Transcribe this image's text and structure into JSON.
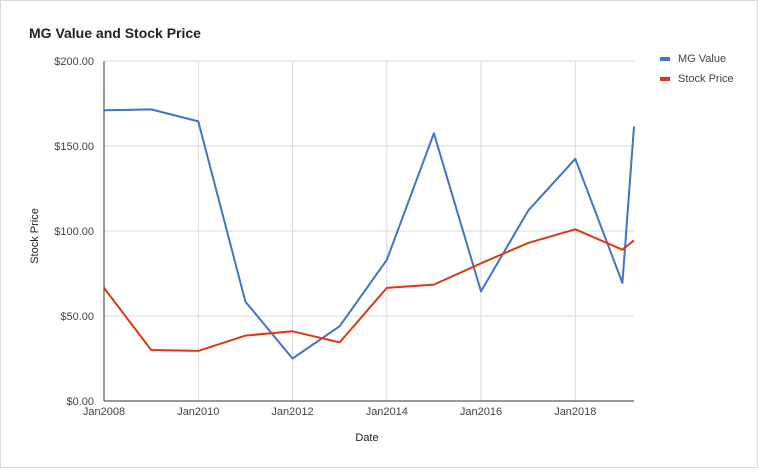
{
  "chart_data": {
    "type": "line",
    "title": "MG Value and Stock Price",
    "xlabel": "Date",
    "ylabel": "Stock Price",
    "ylim": [
      0,
      200
    ],
    "y_ticks": [
      {
        "value": 0,
        "label": "$0.00"
      },
      {
        "value": 50,
        "label": "$50.00"
      },
      {
        "value": 100,
        "label": "$100.00"
      },
      {
        "value": 150,
        "label": "$150.00"
      },
      {
        "value": 200,
        "label": "$200.00"
      }
    ],
    "xlim": [
      "2008-01-01",
      "2019-04-01"
    ],
    "x_ticks": [
      {
        "date": "2008-01-01",
        "label": "Jan2008"
      },
      {
        "date": "2010-01-01",
        "label": "Jan2010"
      },
      {
        "date": "2012-01-01",
        "label": "Jan2012"
      },
      {
        "date": "2014-01-01",
        "label": "Jan2014"
      },
      {
        "date": "2016-01-01",
        "label": "Jan2016"
      },
      {
        "date": "2018-01-01",
        "label": "Jan2018"
      }
    ],
    "grid": true,
    "legend_position": "right",
    "series": [
      {
        "name": "MG Value",
        "color": "#4472c4",
        "points": [
          {
            "x": "2008-01-01",
            "y": 171
          },
          {
            "x": "2009-01-01",
            "y": 171.5
          },
          {
            "x": "2010-01-01",
            "y": 164.5
          },
          {
            "x": "2011-01-01",
            "y": 58.5
          },
          {
            "x": "2012-01-01",
            "y": 25
          },
          {
            "x": "2013-01-01",
            "y": 44
          },
          {
            "x": "2014-01-01",
            "y": 83
          },
          {
            "x": "2015-01-01",
            "y": 157.5
          },
          {
            "x": "2016-01-01",
            "y": 64.5
          },
          {
            "x": "2017-01-01",
            "y": 112
          },
          {
            "x": "2018-01-01",
            "y": 142.5
          },
          {
            "x": "2019-01-01",
            "y": 69.5
          },
          {
            "x": "2019-04-01",
            "y": 161.5
          }
        ]
      },
      {
        "name": "Stock Price",
        "color": "#dc3912",
        "points": [
          {
            "x": "2008-01-01",
            "y": 66.5
          },
          {
            "x": "2009-01-01",
            "y": 30
          },
          {
            "x": "2010-01-01",
            "y": 29.5
          },
          {
            "x": "2011-01-01",
            "y": 38.5
          },
          {
            "x": "2012-01-01",
            "y": 41
          },
          {
            "x": "2013-01-01",
            "y": 34.5
          },
          {
            "x": "2014-01-01",
            "y": 66.5
          },
          {
            "x": "2015-01-01",
            "y": 68.5
          },
          {
            "x": "2016-01-01",
            "y": 81
          },
          {
            "x": "2017-01-01",
            "y": 93
          },
          {
            "x": "2018-01-01",
            "y": 101
          },
          {
            "x": "2019-01-01",
            "y": 89
          },
          {
            "x": "2019-04-01",
            "y": 94.5
          }
        ]
      }
    ]
  }
}
